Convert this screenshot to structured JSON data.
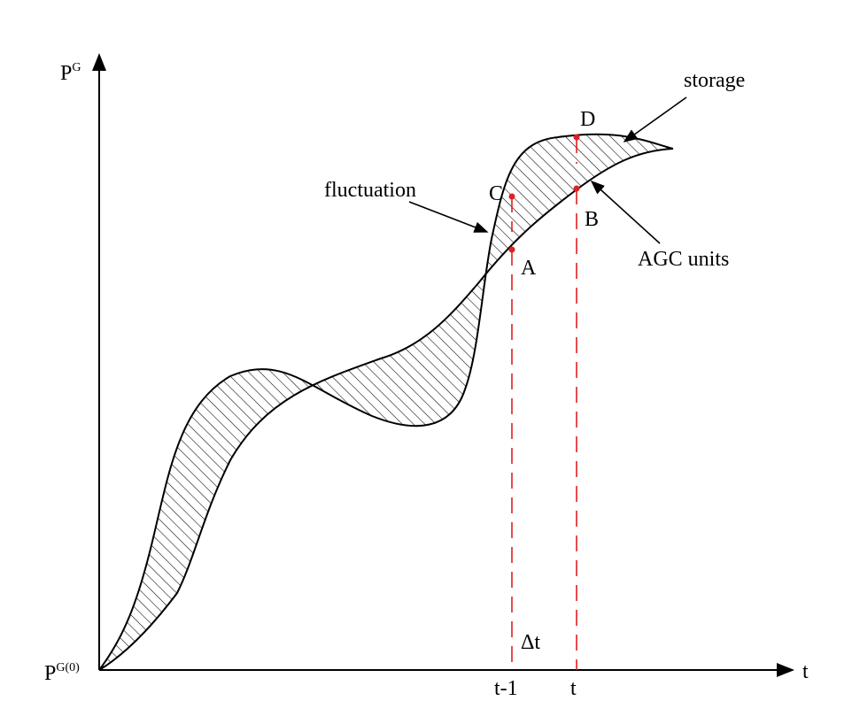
{
  "axes": {
    "y_label": "P",
    "y_label_sup": "G",
    "x_label": "t",
    "origin_label": "P",
    "origin_label_sup": "G(0)"
  },
  "x_ticks": {
    "t_minus_1": "t-1",
    "t": "t",
    "delta": "Δt"
  },
  "points": {
    "A": "A",
    "B": "B",
    "C": "C",
    "D": "D"
  },
  "annotations": {
    "storage": "storage",
    "fluctuation": "fluctuation",
    "agc_units": "AGC units"
  },
  "colors": {
    "curve": "#000000",
    "hatch": "#000000",
    "marker": "#e02020",
    "background": "#ffffff"
  }
}
